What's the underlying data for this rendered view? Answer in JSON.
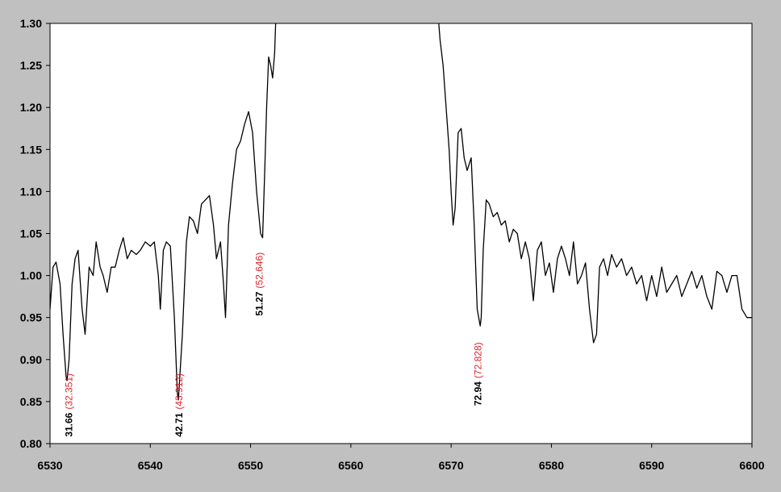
{
  "chart_data": {
    "type": "line",
    "title": "",
    "xlabel": "",
    "ylabel": "",
    "xlim": [
      6530,
      6600
    ],
    "ylim": [
      0.8,
      1.3
    ],
    "x_ticks": [
      6530,
      6540,
      6550,
      6560,
      6570,
      6580,
      6590,
      6600
    ],
    "x_tick_labels": [
      "6530",
      "6540",
      "6550",
      "6560",
      "6570",
      "6580",
      "6590",
      "6600"
    ],
    "y_ticks": [
      0.8,
      0.85,
      0.9,
      0.95,
      1.0,
      1.05,
      1.1,
      1.15,
      1.2,
      1.25,
      1.3
    ],
    "y_tick_labels": [
      "0.80",
      "0.85",
      "0.90",
      "0.95",
      "1.00",
      "1.05",
      "1.10",
      "1.15",
      "1.20",
      "1.25",
      "1.30"
    ],
    "grid": false,
    "legend": "none",
    "colors": {
      "line": "#000000",
      "obs_label": "#000000",
      "ref_label": "#e0202a",
      "plot_bg": "#ffffff",
      "frame_bg": "#c0c0c0"
    },
    "series": [
      {
        "x": [
          6530.0,
          6530.3,
          6530.6,
          6531.0,
          6531.3,
          6531.6,
          6531.7,
          6531.9,
          6532.2,
          6532.5,
          6532.8,
          6533.2,
          6533.5,
          6533.9,
          6534.3,
          6534.6,
          6535.0,
          6535.3,
          6535.7,
          6536.1,
          6536.5,
          6536.9,
          6537.3,
          6537.7,
          6538.1,
          6538.6,
          6539.0,
          6539.5,
          6540.0,
          6540.4,
          6540.8,
          6541.0,
          6541.3,
          6541.6,
          6542.0,
          6542.4,
          6542.7,
          6542.8,
          6543.2,
          6543.6,
          6543.9,
          6544.3,
          6544.7,
          6545.1,
          6545.5,
          6545.9,
          6546.3,
          6546.6,
          6547.0,
          6547.3,
          6547.5,
          6547.8,
          6548.2,
          6548.6,
          6549.0,
          6549.4,
          6549.8,
          6550.2,
          6550.6,
          6551.0,
          6551.2,
          6551.4,
          6551.6,
          6551.8,
          6552.0,
          6552.2,
          6552.4,
          6552.5,
          6552.6
        ],
        "y": [
          0.96,
          1.01,
          1.016,
          0.99,
          0.93,
          0.88,
          0.875,
          0.9,
          0.99,
          1.02,
          1.03,
          0.96,
          0.93,
          1.01,
          1.0,
          1.04,
          1.01,
          1.0,
          0.98,
          1.01,
          1.01,
          1.03,
          1.045,
          1.02,
          1.03,
          1.025,
          1.03,
          1.04,
          1.035,
          1.04,
          1.0,
          0.96,
          1.03,
          1.04,
          1.035,
          0.95,
          0.86,
          0.852,
          0.93,
          1.04,
          1.07,
          1.065,
          1.05,
          1.085,
          1.09,
          1.095,
          1.06,
          1.02,
          1.04,
          0.99,
          0.95,
          1.06,
          1.11,
          1.15,
          1.16,
          1.18,
          1.195,
          1.17,
          1.1,
          1.05,
          1.045,
          1.12,
          1.2,
          1.26,
          1.25,
          1.235,
          1.265,
          1.3,
          1.31
        ]
      },
      {
        "x": [
          6568.7,
          6568.9,
          6569.2,
          6569.5,
          6569.8,
          6570.0,
          6570.2,
          6570.4,
          6570.7,
          6571.0,
          6571.3,
          6571.6,
          6572.0,
          6572.3,
          6572.6,
          6572.9,
          6573.0,
          6573.2,
          6573.5,
          6573.8,
          6574.2,
          6574.6,
          6575.0,
          6575.4,
          6575.8,
          6576.2,
          6576.6,
          6577.0,
          6577.4,
          6577.8,
          6578.2,
          6578.6,
          6579.0,
          6579.4,
          6579.8,
          6580.2,
          6580.6,
          6581.0,
          6581.4,
          6581.8,
          6582.2,
          6582.6,
          6583.0,
          6583.4,
          6583.8,
          6584.2,
          6584.5,
          6584.8,
          6585.2,
          6585.6,
          6586.0,
          6586.5,
          6587.0,
          6587.5,
          6588.0,
          6588.5,
          6589.0,
          6589.5,
          6590.0,
          6590.5,
          6591.0,
          6591.5,
          6592.0,
          6592.5,
          6593.0,
          6593.5,
          6594.0,
          6594.5,
          6595.0,
          6595.5,
          6596.0,
          6596.5,
          6597.0,
          6597.5,
          6598.0,
          6598.5,
          6599.0,
          6599.5,
          6600.0
        ],
        "y": [
          1.31,
          1.28,
          1.25,
          1.2,
          1.15,
          1.1,
          1.06,
          1.08,
          1.17,
          1.175,
          1.14,
          1.125,
          1.14,
          1.06,
          0.96,
          0.94,
          0.95,
          1.03,
          1.09,
          1.085,
          1.07,
          1.075,
          1.06,
          1.065,
          1.04,
          1.055,
          1.05,
          1.02,
          1.04,
          1.02,
          0.97,
          1.03,
          1.04,
          1.0,
          1.015,
          0.98,
          1.02,
          1.035,
          1.02,
          1.0,
          1.04,
          0.99,
          1.0,
          1.015,
          0.96,
          0.92,
          0.93,
          1.01,
          1.02,
          1.0,
          1.025,
          1.01,
          1.02,
          1.0,
          1.01,
          0.99,
          1.0,
          0.97,
          1.0,
          0.975,
          1.01,
          0.98,
          0.99,
          1.0,
          0.975,
          0.99,
          1.005,
          0.985,
          1.0,
          0.975,
          0.96,
          1.005,
          1.0,
          0.98,
          1.0,
          1.0,
          0.96,
          0.95,
          0.95
        ]
      }
    ],
    "annotations": [
      {
        "x": 6532.2,
        "y": 0.808,
        "observed": "31.66",
        "reference": "(32.351)"
      },
      {
        "x": 6543.2,
        "y": 0.808,
        "observed": "42.71",
        "reference": "(43.912)"
      },
      {
        "x": 6551.2,
        "y": 0.952,
        "observed": "51.27",
        "reference": "(52.646)"
      },
      {
        "x": 6573.0,
        "y": 0.845,
        "observed": "72.94",
        "reference": "(72.828)"
      }
    ]
  }
}
